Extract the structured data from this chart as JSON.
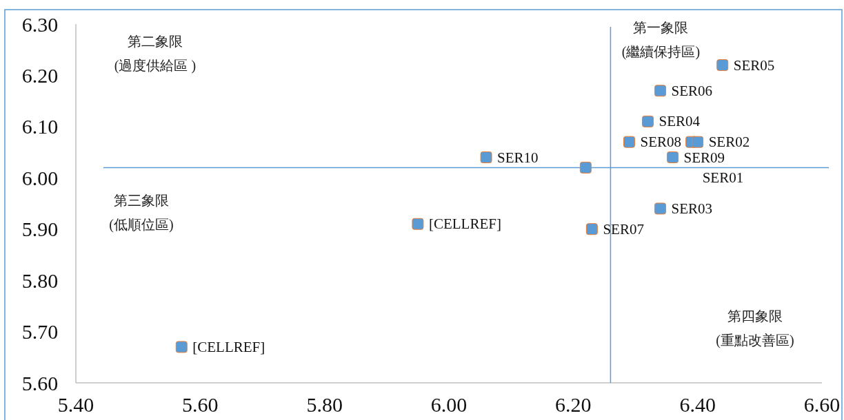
{
  "chart_data": {
    "type": "scatter",
    "xlim": [
      5.4,
      6.6
    ],
    "xticks": [
      {
        "value": 5.4,
        "label": "5.40"
      },
      {
        "value": 5.6,
        "label": "5.60"
      },
      {
        "value": 5.8,
        "label": "5.80"
      },
      {
        "value": 6.0,
        "label": "6.00"
      },
      {
        "value": 6.2,
        "label": "6.20"
      },
      {
        "value": 6.4,
        "label": "6.40"
      },
      {
        "value": 6.6,
        "label": "6.60"
      }
    ],
    "ylim": [
      5.6,
      6.3
    ],
    "yticks": [
      {
        "value": 5.6,
        "label": "5.60"
      },
      {
        "value": 5.7,
        "label": "5.70"
      },
      {
        "value": 5.8,
        "label": "5.80"
      },
      {
        "value": 5.9,
        "label": "5.90"
      },
      {
        "value": 6.0,
        "label": "6.00"
      },
      {
        "value": 6.1,
        "label": "6.10"
      },
      {
        "value": 6.2,
        "label": "6.20"
      },
      {
        "value": 6.3,
        "label": "6.30"
      }
    ],
    "grid": false,
    "marker": "square",
    "series": [
      {
        "color": "#5b9bd5",
        "x": [
          5.57,
          5.95,
          6.06,
          6.22,
          6.23,
          6.29,
          6.32,
          6.34,
          6.34,
          6.44,
          6.39,
          6.4,
          6.36
        ],
        "values": [
          5.67,
          5.91,
          6.04,
          6.02,
          5.9,
          6.07,
          6.11,
          6.17,
          5.94,
          6.22,
          6.07,
          6.07,
          6.04
        ]
      }
    ],
    "ref_lines": [
      {
        "axis": "y",
        "value": 6.02,
        "color": "#5b9bd5"
      },
      {
        "axis": "x",
        "value": 6.26,
        "color": "#5b9bd5"
      }
    ],
    "annotations": [
      "第一象限\n(繼續保持區)",
      "第二象限\n(過度供給區 )",
      "第三象限\n(低順位區)",
      "第四象限\n(重點改善區)",
      {
        "text": "[CELLREF]",
        "x": 5.57,
        "y": 5.67
      },
      {
        "text": "[CELLREF]",
        "x": 5.95,
        "y": 5.91
      },
      {
        "text": "SER10",
        "x": 6.06,
        "y": 6.04
      },
      {
        "text": "SER07",
        "x": 6.23,
        "y": 5.9
      },
      {
        "text": "SER08",
        "x": 6.29,
        "y": 6.07
      },
      {
        "text": "SER04",
        "x": 6.32,
        "y": 6.11
      },
      {
        "text": "SER06",
        "x": 6.34,
        "y": 6.17
      },
      {
        "text": "SER03",
        "x": 6.34,
        "y": 5.94
      },
      {
        "text": "SER05",
        "x": 6.44,
        "y": 6.22
      },
      {
        "text": "SER02",
        "x": 6.4,
        "y": 6.07
      },
      {
        "text": "SER09",
        "x": 6.36,
        "y": 6.04
      },
      {
        "text": "SER01",
        "x": 6.39,
        "y": 6.07
      }
    ]
  }
}
